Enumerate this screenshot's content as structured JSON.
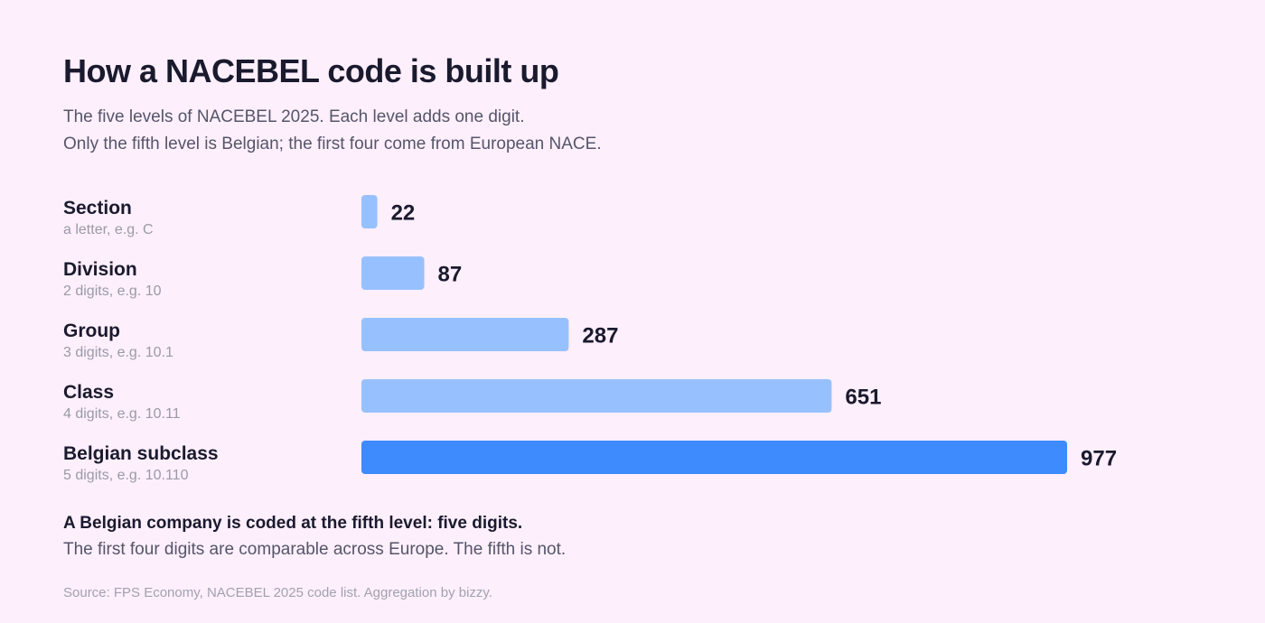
{
  "header": {
    "title": "How a NACEBEL code is built up",
    "subtitle_line1": "The five levels of NACEBEL 2025. Each level adds one digit.",
    "subtitle_line2": "Only the fifth level is Belgian; the first four come from European NACE."
  },
  "chart_data": {
    "type": "bar",
    "orientation": "horizontal",
    "title": "How a NACEBEL code is built up",
    "categories": [
      "Section",
      "Division",
      "Group",
      "Class",
      "Belgian subclass"
    ],
    "descriptions": [
      "a letter, e.g. C",
      "2 digits, e.g. 10",
      "3 digits, e.g. 10.1",
      "4 digits, e.g. 10.11",
      "5 digits, e.g. 10.110"
    ],
    "values": [
      22,
      87,
      287,
      651,
      977
    ],
    "highlight_index": 4,
    "xlim": [
      0,
      977
    ],
    "grid": false,
    "colors": {
      "default": "#97c1fe",
      "highlight": "#3d8bfd"
    }
  },
  "footer": {
    "note_bold": "A Belgian company is coded at the fifth level: five digits.",
    "note": "The first four digits are comparable across Europe. The fifth is not.",
    "source": "Source: FPS Economy, NACEBEL 2025 code list. Aggregation by bizzy."
  }
}
